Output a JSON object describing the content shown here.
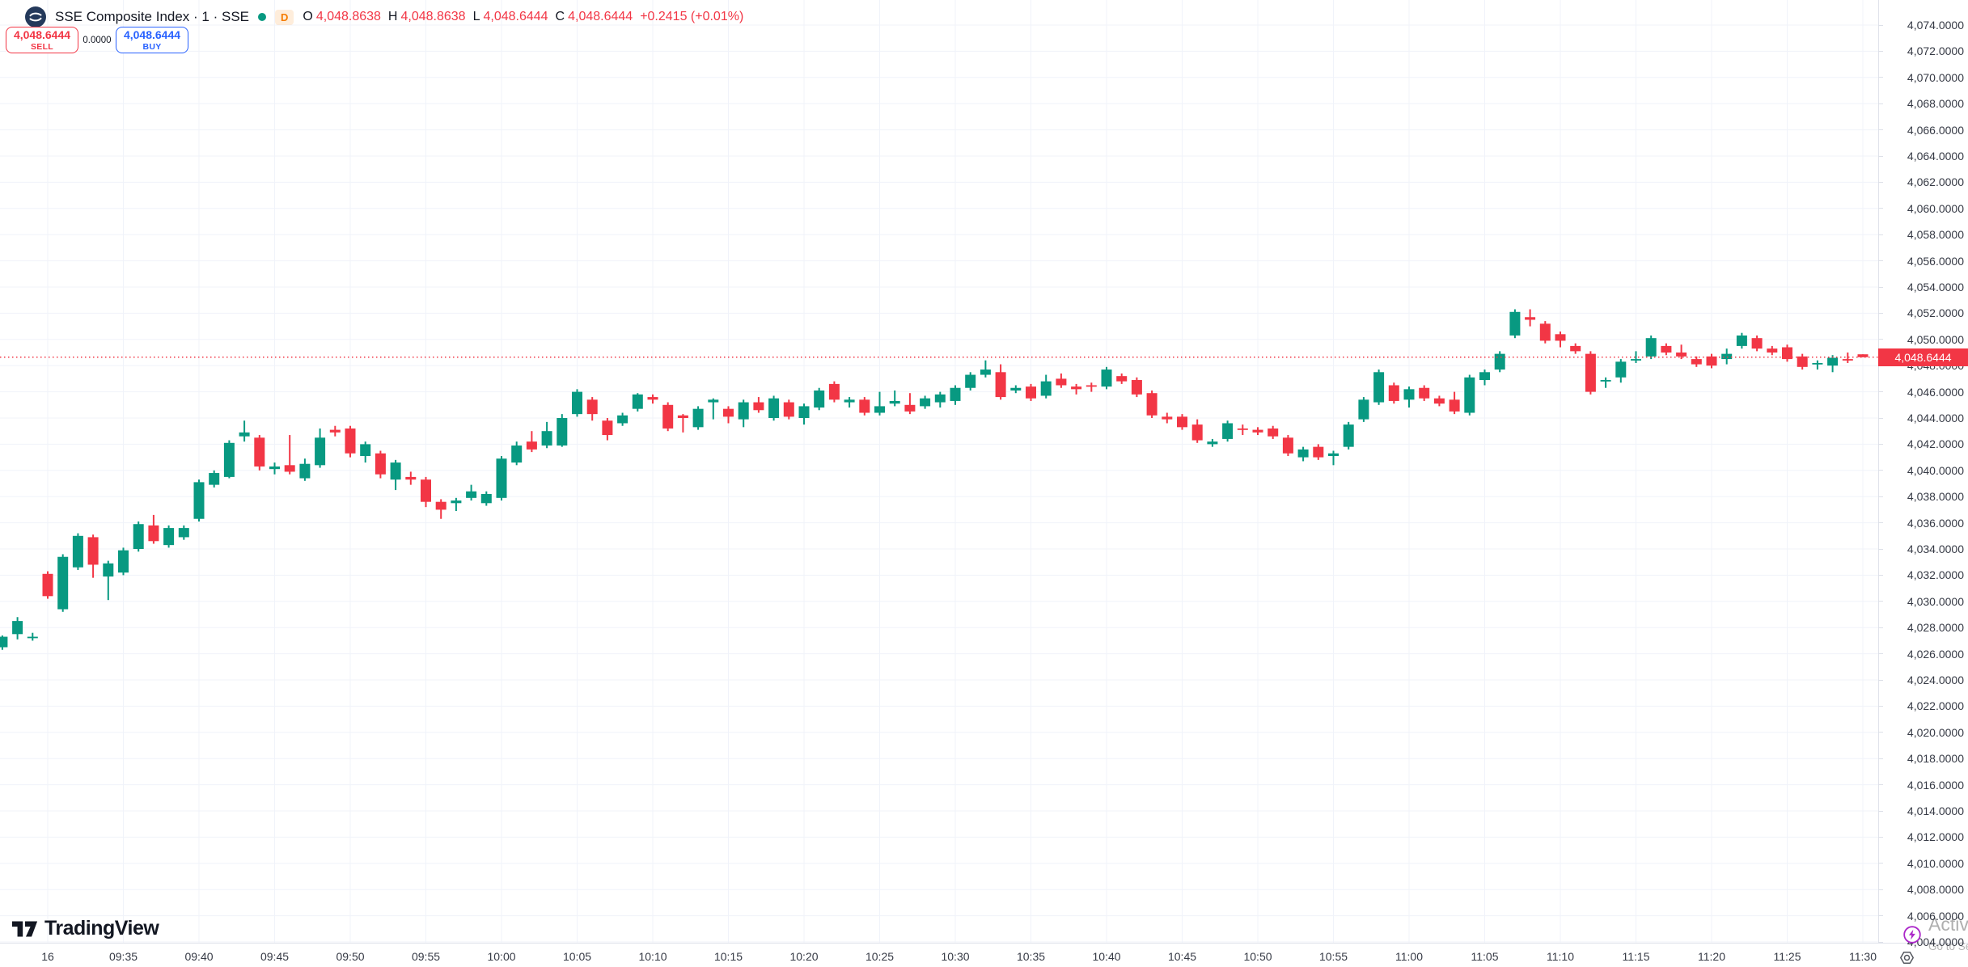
{
  "header": {
    "title": "SSE Composite Index · 1 · SSE",
    "market_status": "open",
    "delayed_badge": "D",
    "ohlc": {
      "o_key": "O",
      "o": "4,048.8638",
      "h_key": "H",
      "h": "4,048.8638",
      "l_key": "L",
      "l": "4,048.6444",
      "c_key": "C",
      "c": "4,048.6444",
      "change": "+0.2415 (+0.01%)"
    }
  },
  "order_panel": {
    "sell_price": "4,048.6444",
    "sell_label": "SELL",
    "spread": "0.0000",
    "buy_price": "4,048.6444",
    "buy_label": "BUY"
  },
  "brand": {
    "name": "TradingView"
  },
  "price_axis": {
    "current_price_label": "4,048.6444",
    "labels": [
      "4,074.0000",
      "4,072.0000",
      "4,070.0000",
      "4,068.0000",
      "4,066.0000",
      "4,064.0000",
      "4,062.0000",
      "4,060.0000",
      "4,058.0000",
      "4,056.0000",
      "4,054.0000",
      "4,052.0000",
      "4,050.0000",
      "4,048.0000",
      "4,046.0000",
      "4,044.0000",
      "4,042.0000",
      "4,040.0000",
      "4,038.0000",
      "4,036.0000",
      "4,034.0000",
      "4,032.0000",
      "4,030.0000",
      "4,028.0000",
      "4,026.0000",
      "4,024.0000",
      "4,022.0000",
      "4,020.0000",
      "4,018.0000",
      "4,016.0000",
      "4,014.0000",
      "4,012.0000",
      "4,010.0000",
      "4,008.0000",
      "4,006.0000",
      "4,004.0000"
    ]
  },
  "time_axis": {
    "ticks": [
      {
        "label": "16",
        "min": 0
      },
      {
        "label": "09:35",
        "min": 5
      },
      {
        "label": "09:40",
        "min": 10
      },
      {
        "label": "09:45",
        "min": 15
      },
      {
        "label": "09:50",
        "min": 20
      },
      {
        "label": "09:55",
        "min": 25
      },
      {
        "label": "10:00",
        "min": 30
      },
      {
        "label": "10:05",
        "min": 35
      },
      {
        "label": "10:10",
        "min": 40
      },
      {
        "label": "10:15",
        "min": 45
      },
      {
        "label": "10:20",
        "min": 50
      },
      {
        "label": "10:25",
        "min": 55
      },
      {
        "label": "10:30",
        "min": 60
      },
      {
        "label": "10:35",
        "min": 65
      },
      {
        "label": "10:40",
        "min": 70
      },
      {
        "label": "10:45",
        "min": 75
      },
      {
        "label": "10:50",
        "min": 80
      },
      {
        "label": "10:55",
        "min": 85
      },
      {
        "label": "11:00",
        "min": 90
      },
      {
        "label": "11:05",
        "min": 95
      },
      {
        "label": "11:10",
        "min": 100
      },
      {
        "label": "11:15",
        "min": 105
      },
      {
        "label": "11:20",
        "min": 110
      },
      {
        "label": "11:25",
        "min": 115
      },
      {
        "label": "11:30",
        "min": 120
      }
    ]
  },
  "watermark": {
    "line1": "Activate Windows",
    "line2": "Go to Settings to activate Windows."
  },
  "colors": {
    "up": "#089981",
    "down": "#f23645",
    "buy_accent": "#2962ff",
    "sell_accent": "#f23645",
    "grid": "#f0f3fa",
    "axis_border": "#e0e3eb",
    "text": "#131722",
    "axis_text": "#363a45",
    "delayed_badge": "#f57c00",
    "lightning": "#ab27c9",
    "logo_navy": "#24395b"
  },
  "chart_data": {
    "type": "candlestick",
    "title": "SSE Composite Index 1-minute",
    "interval_minutes": 1,
    "x_unit": "minutes_from_09:30",
    "xlim_minutes": [
      -3,
      121
    ],
    "ylim": [
      4004,
      4074
    ],
    "y_step": 2,
    "grid": true,
    "legend_position": "top-left",
    "current_price": 4048.6444,
    "candles": [
      [
        -3,
        4026.5,
        4027.4,
        4026.3,
        4027.3
      ],
      [
        -2,
        4027.5,
        4028.8,
        4027.1,
        4028.5
      ],
      [
        -1,
        4027.2,
        4027.6,
        4027.0,
        4027.3
      ],
      [
        0,
        4032.1,
        4032.3,
        4030.2,
        4030.4
      ],
      [
        1,
        4029.4,
        4033.6,
        4029.2,
        4033.4
      ],
      [
        2,
        4032.6,
        4035.2,
        4032.4,
        4035.0
      ],
      [
        3,
        4034.9,
        4035.1,
        4031.8,
        4032.8
      ],
      [
        4,
        4031.9,
        4033.1,
        4030.1,
        4032.9
      ],
      [
        5,
        4032.2,
        4034.1,
        4032.0,
        4033.9
      ],
      [
        6,
        4034.0,
        4036.1,
        4033.8,
        4035.9
      ],
      [
        7,
        4035.8,
        4036.6,
        4034.4,
        4034.6
      ],
      [
        8,
        4034.3,
        4035.8,
        4034.1,
        4035.6
      ],
      [
        9,
        4034.9,
        4035.8,
        4034.7,
        4035.6
      ],
      [
        10,
        4036.3,
        4039.3,
        4036.1,
        4039.1
      ],
      [
        11,
        4038.9,
        4040.0,
        4038.7,
        4039.8
      ],
      [
        12,
        4039.5,
        4042.3,
        4039.4,
        4042.1
      ],
      [
        13,
        4042.6,
        4043.8,
        4042.2,
        4042.9
      ],
      [
        14,
        4042.5,
        4042.7,
        4040.0,
        4040.3
      ],
      [
        15,
        4040.1,
        4040.6,
        4039.7,
        4040.3
      ],
      [
        16,
        4040.4,
        4042.7,
        4039.7,
        4039.9
      ],
      [
        17,
        4039.4,
        4040.9,
        4039.2,
        4040.5
      ],
      [
        18,
        4040.4,
        4043.2,
        4040.2,
        4042.5
      ],
      [
        19,
        4043.1,
        4043.4,
        4042.6,
        4042.9
      ],
      [
        20,
        4043.2,
        4043.4,
        4041.0,
        4041.3
      ],
      [
        21,
        4041.1,
        4042.2,
        4040.6,
        4042.0
      ],
      [
        22,
        4041.3,
        4041.5,
        4039.4,
        4039.7
      ],
      [
        23,
        4039.3,
        4040.8,
        4038.5,
        4040.6
      ],
      [
        24,
        4039.5,
        4039.9,
        4038.9,
        4039.3
      ],
      [
        25,
        4039.3,
        4039.5,
        4037.2,
        4037.6
      ],
      [
        26,
        4037.6,
        4037.8,
        4036.3,
        4037.0
      ],
      [
        27,
        4037.5,
        4037.9,
        4036.9,
        4037.7
      ],
      [
        28,
        4037.9,
        4038.9,
        4037.7,
        4038.4
      ],
      [
        29,
        4037.5,
        4038.4,
        4037.3,
        4038.2
      ],
      [
        30,
        4037.9,
        4041.1,
        4037.7,
        4040.9
      ],
      [
        31,
        4040.6,
        4042.2,
        4040.4,
        4041.9
      ],
      [
        32,
        4042.2,
        4043.0,
        4041.4,
        4041.6
      ],
      [
        33,
        4041.9,
        4043.7,
        4041.7,
        4043.0
      ],
      [
        34,
        4041.9,
        4044.3,
        4041.8,
        4044.0
      ],
      [
        35,
        4044.3,
        4046.2,
        4044.1,
        4046.0
      ],
      [
        36,
        4045.4,
        4045.6,
        4043.8,
        4044.3
      ],
      [
        37,
        4043.8,
        4044.0,
        4042.3,
        4042.7
      ],
      [
        38,
        4043.6,
        4044.4,
        4043.4,
        4044.2
      ],
      [
        39,
        4044.7,
        4045.9,
        4044.5,
        4045.8
      ],
      [
        40,
        4045.6,
        4045.8,
        4045.1,
        4045.4
      ],
      [
        41,
        4045.0,
        4045.2,
        4043.0,
        4043.2
      ],
      [
        42,
        4044.2,
        4044.3,
        4042.9,
        4044.0
      ],
      [
        43,
        4043.3,
        4044.9,
        4043.1,
        4044.7
      ],
      [
        44,
        4045.2,
        4045.5,
        4043.9,
        4045.4
      ],
      [
        45,
        4044.7,
        4044.9,
        4043.6,
        4044.1
      ],
      [
        46,
        4043.9,
        4045.4,
        4043.3,
        4045.2
      ],
      [
        47,
        4045.2,
        4045.6,
        4044.4,
        4044.6
      ],
      [
        48,
        4044.0,
        4045.7,
        4043.8,
        4045.5
      ],
      [
        49,
        4045.2,
        4045.4,
        4043.9,
        4044.1
      ],
      [
        50,
        4044.0,
        4045.1,
        4043.5,
        4044.9
      ],
      [
        51,
        4044.8,
        4046.3,
        4044.6,
        4046.1
      ],
      [
        52,
        4046.6,
        4046.8,
        4045.2,
        4045.4
      ],
      [
        53,
        4045.2,
        4045.6,
        4044.8,
        4045.4
      ],
      [
        54,
        4045.4,
        4045.6,
        4044.2,
        4044.4
      ],
      [
        55,
        4044.4,
        4046.0,
        4044.2,
        4044.9
      ],
      [
        56,
        4045.1,
        4046.1,
        4044.9,
        4045.3
      ],
      [
        57,
        4045.0,
        4045.9,
        4044.3,
        4044.5
      ],
      [
        58,
        4044.9,
        4045.7,
        4044.7,
        4045.5
      ],
      [
        59,
        4045.2,
        4046.0,
        4044.8,
        4045.8
      ],
      [
        60,
        4045.3,
        4046.5,
        4045.0,
        4046.3
      ],
      [
        61,
        4046.3,
        4047.5,
        4046.1,
        4047.3
      ],
      [
        62,
        4047.3,
        4048.4,
        4047.1,
        4047.7
      ],
      [
        63,
        4047.5,
        4048.1,
        4045.4,
        4045.6
      ],
      [
        64,
        4046.1,
        4046.5,
        4045.9,
        4046.3
      ],
      [
        65,
        4046.4,
        4046.6,
        4045.3,
        4045.5
      ],
      [
        66,
        4045.7,
        4047.3,
        4045.5,
        4046.8
      ],
      [
        67,
        4047.0,
        4047.4,
        4046.3,
        4046.5
      ],
      [
        68,
        4046.4,
        4046.6,
        4045.8,
        4046.2
      ],
      [
        69,
        4046.5,
        4046.7,
        4046.0,
        4046.4
      ],
      [
        70,
        4046.4,
        4047.9,
        4046.2,
        4047.7
      ],
      [
        71,
        4047.2,
        4047.4,
        4046.6,
        4046.8
      ],
      [
        72,
        4046.9,
        4047.1,
        4045.6,
        4045.8
      ],
      [
        73,
        4045.9,
        4046.1,
        4044.0,
        4044.2
      ],
      [
        74,
        4044.1,
        4044.4,
        4043.6,
        4043.9
      ],
      [
        75,
        4044.1,
        4044.3,
        4043.1,
        4043.3
      ],
      [
        76,
        4043.5,
        4043.9,
        4042.1,
        4042.3
      ],
      [
        77,
        4042.0,
        4042.4,
        4041.8,
        4042.2
      ],
      [
        78,
        4042.4,
        4043.8,
        4042.2,
        4043.6
      ],
      [
        79,
        4043.2,
        4043.5,
        4042.7,
        4043.1
      ],
      [
        80,
        4043.1,
        4043.3,
        4042.7,
        4042.9
      ],
      [
        81,
        4043.2,
        4043.4,
        4042.4,
        4042.6
      ],
      [
        82,
        4042.5,
        4042.7,
        4041.1,
        4041.3
      ],
      [
        83,
        4041.0,
        4041.8,
        4040.7,
        4041.6
      ],
      [
        84,
        4041.8,
        4042.0,
        4040.8,
        4041.0
      ],
      [
        85,
        4041.1,
        4041.5,
        4040.4,
        4041.3
      ],
      [
        86,
        4041.8,
        4043.7,
        4041.6,
        4043.5
      ],
      [
        87,
        4043.9,
        4045.6,
        4043.7,
        4045.4
      ],
      [
        88,
        4045.2,
        4047.7,
        4045.0,
        4047.5
      ],
      [
        89,
        4046.5,
        4046.7,
        4045.1,
        4045.3
      ],
      [
        90,
        4045.4,
        4046.4,
        4044.8,
        4046.2
      ],
      [
        91,
        4046.3,
        4046.5,
        4045.3,
        4045.5
      ],
      [
        92,
        4045.5,
        4045.7,
        4044.9,
        4045.1
      ],
      [
        93,
        4045.4,
        4046.0,
        4044.3,
        4044.5
      ],
      [
        94,
        4044.4,
        4047.3,
        4044.2,
        4047.1
      ],
      [
        95,
        4046.9,
        4047.7,
        4046.5,
        4047.5
      ],
      [
        96,
        4047.7,
        4049.1,
        4047.5,
        4048.9
      ],
      [
        97,
        4050.3,
        4052.3,
        4050.1,
        4052.1
      ],
      [
        98,
        4051.7,
        4052.3,
        4051.0,
        4051.5
      ],
      [
        99,
        4051.2,
        4051.4,
        4049.7,
        4049.9
      ],
      [
        100,
        4050.4,
        4050.6,
        4049.4,
        4049.9
      ],
      [
        101,
        4049.5,
        4049.7,
        4048.9,
        4049.1
      ],
      [
        102,
        4048.9,
        4049.1,
        4045.8,
        4046.0
      ],
      [
        103,
        4046.8,
        4047.1,
        4046.3,
        4046.9
      ],
      [
        104,
        4047.1,
        4048.5,
        4046.7,
        4048.3
      ],
      [
        105,
        4048.4,
        4049.1,
        4048.2,
        4048.5
      ],
      [
        106,
        4048.7,
        4050.3,
        4048.5,
        4050.1
      ],
      [
        107,
        4049.5,
        4049.7,
        4048.8,
        4049.0
      ],
      [
        108,
        4049.0,
        4049.6,
        4048.5,
        4048.7
      ],
      [
        109,
        4048.5,
        4048.7,
        4047.9,
        4048.1
      ],
      [
        110,
        4048.7,
        4048.9,
        4047.8,
        4048.0
      ],
      [
        111,
        4048.5,
        4049.3,
        4048.1,
        4048.9
      ],
      [
        112,
        4049.5,
        4050.5,
        4049.3,
        4050.3
      ],
      [
        113,
        4050.1,
        4050.3,
        4049.1,
        4049.3
      ],
      [
        114,
        4049.3,
        4049.5,
        4048.8,
        4049.0
      ],
      [
        115,
        4049.4,
        4049.6,
        4048.3,
        4048.5
      ],
      [
        116,
        4048.7,
        4048.9,
        4047.7,
        4047.9
      ],
      [
        117,
        4048.1,
        4048.4,
        4047.7,
        4048.2
      ],
      [
        118,
        4048.0,
        4048.8,
        4047.5,
        4048.6
      ],
      [
        119,
        4048.5,
        4049.0,
        4048.2,
        4048.4
      ],
      [
        120,
        4048.8638,
        4048.8638,
        4048.6444,
        4048.6444
      ]
    ]
  }
}
